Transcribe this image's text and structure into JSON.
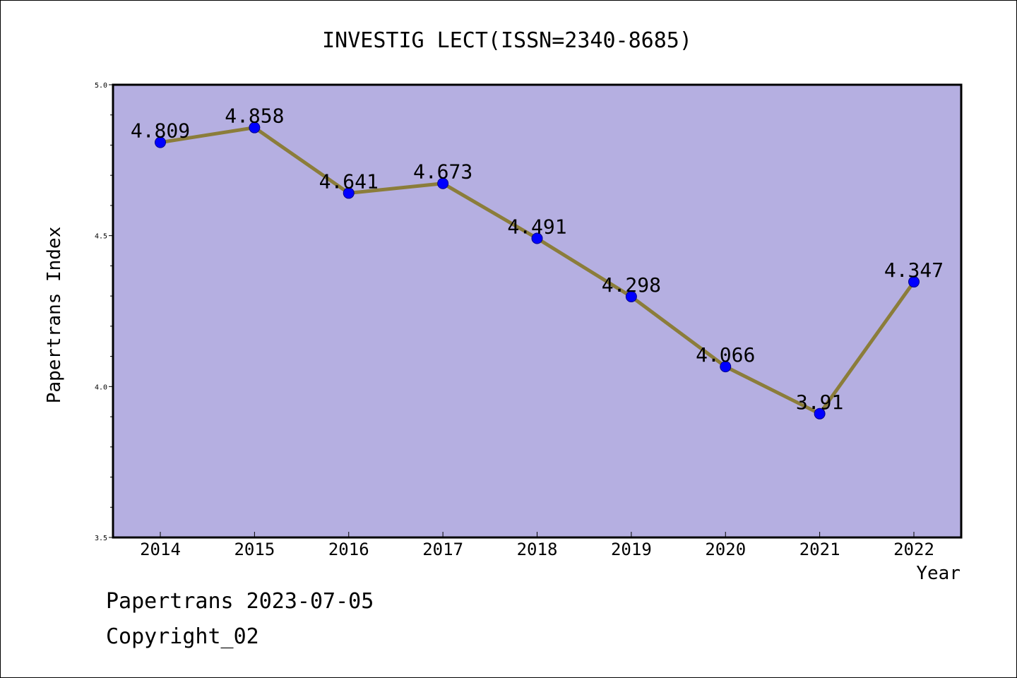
{
  "chart_data": {
    "type": "line",
    "title": "INVESTIG LECT(ISSN=2340-8685)",
    "xlabel": "Year",
    "ylabel": "Papertrans Index",
    "categories": [
      "2014",
      "2015",
      "2016",
      "2017",
      "2018",
      "2019",
      "2020",
      "2021",
      "2022"
    ],
    "series": [
      {
        "values": [
          4.809,
          4.858,
          4.641,
          4.673,
          4.491,
          4.298,
          4.066,
          3.91,
          4.347
        ],
        "labels": [
          "4.809",
          "4.858",
          "4.641",
          "4.673",
          "4.491",
          "4.298",
          "4.066",
          "3.91",
          "4.347"
        ]
      }
    ],
    "ylim": [
      3.5,
      5.0
    ],
    "yticks": [
      "3.5",
      "4.0",
      "4.5",
      "5.0"
    ],
    "grid": false,
    "colors": {
      "plot_background": "#b5afe1",
      "line": "#8b7d3a",
      "marker": "#0000ff"
    }
  },
  "footer": {
    "date_line": "Papertrans 2023-07-05",
    "copyright": "Copyright_02"
  }
}
